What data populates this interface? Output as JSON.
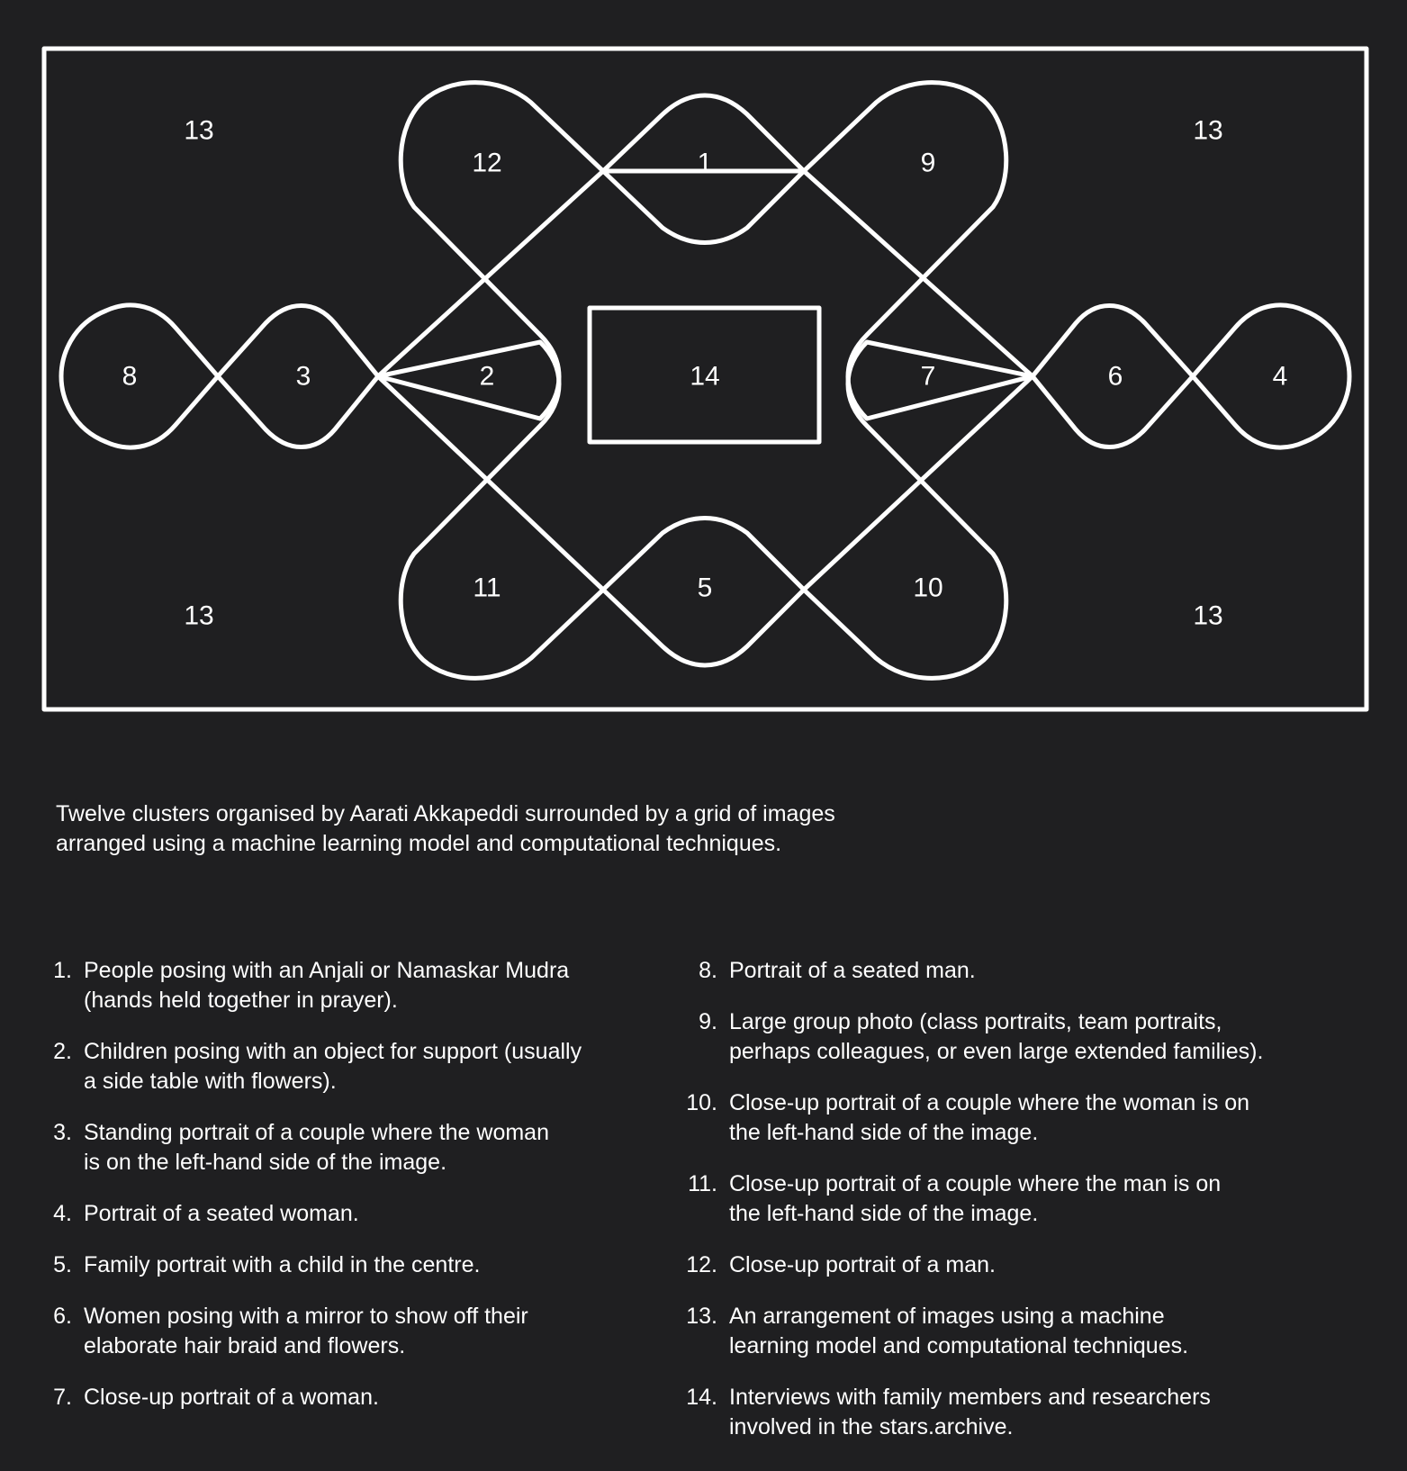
{
  "diagram": {
    "labels": {
      "c1": "1",
      "c2": "2",
      "c3": "3",
      "c4": "4",
      "c5": "5",
      "c6": "6",
      "c7": "7",
      "c8": "8",
      "c9": "9",
      "c10": "10",
      "c11": "11",
      "c12": "12",
      "c13_tl": "13",
      "c13_tr": "13",
      "c13_bl": "13",
      "c13_br": "13",
      "c14": "14"
    }
  },
  "caption": {
    "line1": "Twelve clusters organised by Aarati Akkapeddi surrounded by a grid of images",
    "line2": "arranged using a machine learning model and computational techniques."
  },
  "legend": {
    "left": [
      {
        "num": "1.",
        "text": "People posing with an Anjali or Namaskar Mudra",
        "text2": "(hands held together in prayer)."
      },
      {
        "num": "2.",
        "text": "Children posing with an object for support (usually",
        "text2": "a side table with flowers)."
      },
      {
        "num": "3.",
        "text": "Standing portrait of a couple where the woman",
        "text2": "is on the left-hand side of the image."
      },
      {
        "num": "4.",
        "text": "Portrait of a seated woman.",
        "text2": ""
      },
      {
        "num": "5.",
        "text": "Family portrait with a child in the centre.",
        "text2": ""
      },
      {
        "num": "6.",
        "text": "Women posing with a mirror to show off their",
        "text2": "elaborate hair braid and flowers."
      },
      {
        "num": "7.",
        "text": "Close-up portrait of a woman.",
        "text2": ""
      }
    ],
    "right": [
      {
        "num": "8.",
        "text": "Portrait of a seated man.",
        "text2": ""
      },
      {
        "num": "9.",
        "text": "Large group photo (class portraits, team portraits,",
        "text2": "perhaps colleagues, or even large extended families)."
      },
      {
        "num": "10.",
        "text": "Close-up portrait of a couple where the woman is on",
        "text2": "the left-hand side of the image."
      },
      {
        "num": "11.",
        "text": "Close-up portrait of a couple where the man is on",
        "text2": "the left-hand side of the image."
      },
      {
        "num": "12.",
        "text": "Close-up portrait of a man.",
        "text2": ""
      },
      {
        "num": "13.",
        "text": "An arrangement of images using a machine",
        "text2": "learning model and computational techniques."
      },
      {
        "num": "14.",
        "text": "Interviews with family members and researchers",
        "text2": "involved in the stars.archive."
      }
    ]
  }
}
